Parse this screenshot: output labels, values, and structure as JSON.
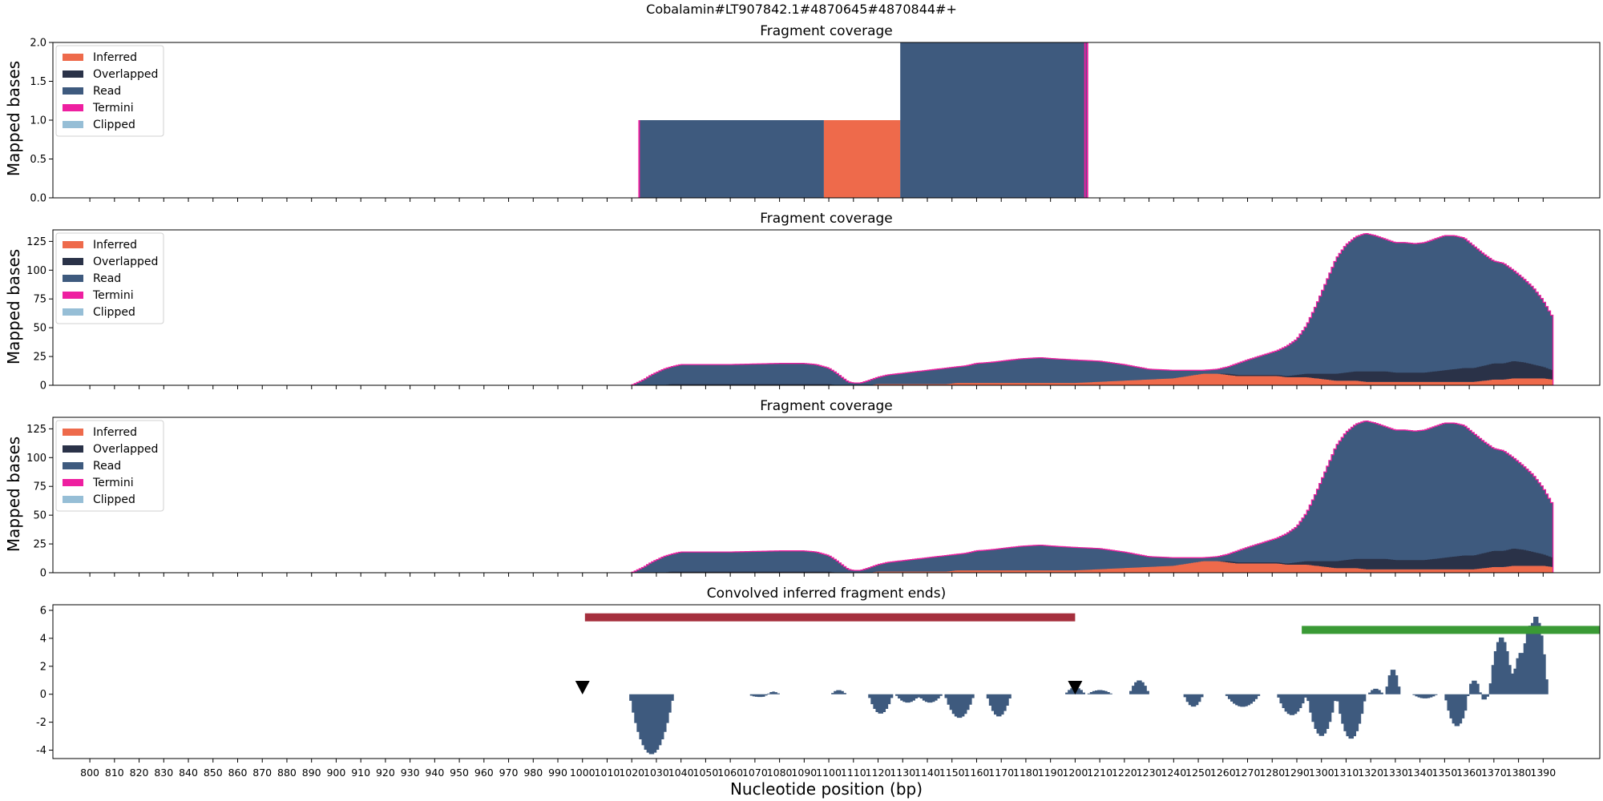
{
  "figure": {
    "suptitle": "Cobalamin#LT907842.1#4870645#4870844#+",
    "xlabel": "Nucleotide position (bp)",
    "ylabel": "Mapped bases",
    "x_range": [
      785,
      1413
    ],
    "x_ticks": [
      800,
      810,
      820,
      830,
      840,
      850,
      860,
      870,
      880,
      890,
      900,
      910,
      920,
      930,
      940,
      950,
      960,
      970,
      980,
      990,
      1000,
      1010,
      1020,
      1030,
      1040,
      1050,
      1060,
      1070,
      1080,
      1090,
      1100,
      1110,
      1120,
      1130,
      1140,
      1150,
      1160,
      1170,
      1180,
      1190,
      1200,
      1210,
      1220,
      1230,
      1240,
      1250,
      1260,
      1270,
      1280,
      1290,
      1300,
      1310,
      1320,
      1330,
      1340,
      1350,
      1360,
      1370,
      1380,
      1390
    ],
    "legend": [
      {
        "label": "Inferred",
        "color": "#EE6A4B"
      },
      {
        "label": "Overlapped",
        "color": "#2A3248"
      },
      {
        "label": "Read",
        "color": "#3E5A7E"
      },
      {
        "label": "Termini",
        "color": "#EE1FA0"
      },
      {
        "label": "Clipped",
        "color": "#96BED6"
      }
    ]
  },
  "chart_data": [
    {
      "type": "area",
      "title": "Fragment coverage",
      "ylabel": "Mapped bases",
      "ylim": [
        0,
        2
      ],
      "yticks": [
        "0.0",
        "0.5",
        "1.0",
        "1.5",
        "2.0"
      ],
      "legend_position": "upper-left",
      "segments": [
        {
          "x": [
            1023,
            1098
          ],
          "read": 1,
          "inferred": 0
        },
        {
          "x": [
            1098,
            1129
          ],
          "read": 0,
          "inferred": 1
        },
        {
          "x": [
            1129,
            1205
          ],
          "read": 2,
          "inferred": 0
        }
      ],
      "termini": [
        1023,
        1204,
        1205
      ]
    },
    {
      "type": "area",
      "title": "Fragment coverage",
      "ylabel": "Mapped bases",
      "ylim": [
        0,
        135
      ],
      "yticks": [
        "0",
        "25",
        "50",
        "75",
        "100",
        "125"
      ],
      "legend_position": "upper-left",
      "profile": {
        "x": [
          1020,
          1022,
          1025,
          1028,
          1031,
          1033,
          1036,
          1040,
          1060,
          1080,
          1090,
          1095,
          1100,
          1103,
          1106,
          1108,
          1110,
          1113,
          1116,
          1120,
          1124,
          1128,
          1132,
          1136,
          1140,
          1144,
          1148,
          1152,
          1156,
          1160,
          1166,
          1170,
          1178,
          1186,
          1192,
          1200,
          1210,
          1220,
          1230,
          1240,
          1246,
          1252,
          1258,
          1262,
          1266,
          1270,
          1276,
          1282,
          1286,
          1290,
          1294,
          1298,
          1302,
          1306,
          1310,
          1314,
          1318,
          1322,
          1326,
          1330,
          1334,
          1338,
          1342,
          1346,
          1350,
          1354,
          1358,
          1362,
          1366,
          1370,
          1374,
          1378,
          1382,
          1386,
          1390,
          1394
        ],
        "total": [
          0,
          2,
          5,
          9,
          12,
          14,
          16,
          18,
          18,
          19,
          19,
          18,
          15,
          11,
          6,
          3,
          2,
          2,
          4,
          7,
          9,
          10,
          11,
          12,
          13,
          14,
          15,
          16,
          17,
          19,
          20,
          21,
          23,
          24,
          23,
          22,
          21,
          18,
          14,
          13,
          13,
          13,
          14,
          16,
          19,
          22,
          26,
          30,
          34,
          40,
          52,
          70,
          90,
          110,
          122,
          129,
          132,
          130,
          127,
          124,
          124,
          123,
          124,
          127,
          130,
          130,
          128,
          121,
          114,
          108,
          106,
          100,
          93,
          85,
          74,
          59
        ],
        "inferred": [
          0,
          0,
          0,
          0,
          0,
          0,
          0,
          0,
          0,
          0,
          0,
          0,
          0,
          0,
          0,
          0,
          0,
          0,
          0,
          1,
          1,
          1,
          1,
          1,
          1,
          1,
          1,
          2,
          2,
          2,
          2,
          2,
          2,
          2,
          2,
          2,
          3,
          4,
          5,
          6,
          8,
          10,
          10,
          9,
          8,
          8,
          8,
          8,
          7,
          7,
          7,
          6,
          5,
          4,
          4,
          4,
          3,
          3,
          3,
          3,
          3,
          3,
          3,
          3,
          3,
          3,
          3,
          3,
          4,
          5,
          5,
          6,
          6,
          6,
          6,
          5
        ],
        "overlap": [
          0,
          0,
          0,
          0,
          0,
          0,
          1,
          1,
          1,
          1,
          1,
          1,
          1,
          0,
          0,
          0,
          0,
          0,
          0,
          0,
          0,
          0,
          0,
          0,
          0,
          0,
          0,
          0,
          0,
          0,
          0,
          0,
          0,
          0,
          0,
          0,
          0,
          0,
          0,
          0,
          0,
          0,
          0,
          1,
          1,
          1,
          1,
          1,
          1,
          2,
          3,
          4,
          5,
          6,
          7,
          8,
          9,
          9,
          9,
          8,
          8,
          8,
          8,
          9,
          10,
          11,
          12,
          12,
          13,
          14,
          14,
          15,
          14,
          12,
          10,
          8
        ]
      }
    },
    {
      "type": "area",
      "title": "Fragment coverage",
      "ylabel": "Mapped bases",
      "ylim": [
        0,
        135
      ],
      "yticks": [
        "0",
        "25",
        "50",
        "75",
        "100",
        "125"
      ],
      "legend_position": "upper-left",
      "profile": {
        "x": [
          1020,
          1022,
          1025,
          1028,
          1031,
          1033,
          1036,
          1040,
          1060,
          1080,
          1090,
          1095,
          1100,
          1103,
          1106,
          1108,
          1110,
          1113,
          1116,
          1120,
          1124,
          1128,
          1132,
          1136,
          1140,
          1144,
          1148,
          1152,
          1156,
          1160,
          1166,
          1170,
          1178,
          1186,
          1192,
          1200,
          1210,
          1220,
          1230,
          1240,
          1246,
          1252,
          1258,
          1262,
          1266,
          1270,
          1276,
          1282,
          1286,
          1290,
          1294,
          1298,
          1302,
          1306,
          1310,
          1314,
          1318,
          1322,
          1326,
          1330,
          1334,
          1338,
          1342,
          1346,
          1350,
          1354,
          1358,
          1362,
          1366,
          1370,
          1374,
          1378,
          1382,
          1386,
          1390,
          1394
        ],
        "total": [
          0,
          2,
          5,
          9,
          12,
          14,
          16,
          18,
          18,
          19,
          19,
          18,
          15,
          11,
          6,
          3,
          2,
          2,
          4,
          7,
          9,
          10,
          11,
          12,
          13,
          14,
          15,
          16,
          17,
          19,
          20,
          21,
          23,
          24,
          23,
          22,
          21,
          18,
          14,
          13,
          13,
          13,
          14,
          16,
          19,
          22,
          26,
          30,
          34,
          40,
          52,
          70,
          90,
          110,
          122,
          129,
          132,
          130,
          127,
          124,
          124,
          123,
          124,
          127,
          130,
          130,
          128,
          121,
          114,
          108,
          106,
          100,
          93,
          85,
          74,
          59
        ],
        "inferred": [
          0,
          0,
          0,
          0,
          0,
          0,
          0,
          0,
          0,
          0,
          0,
          0,
          0,
          0,
          0,
          0,
          0,
          0,
          0,
          1,
          1,
          1,
          1,
          1,
          1,
          1,
          1,
          2,
          2,
          2,
          2,
          2,
          2,
          2,
          2,
          2,
          3,
          4,
          5,
          6,
          8,
          10,
          10,
          9,
          8,
          8,
          8,
          8,
          7,
          7,
          7,
          6,
          5,
          4,
          4,
          4,
          3,
          3,
          3,
          3,
          3,
          3,
          3,
          3,
          3,
          3,
          3,
          3,
          4,
          5,
          5,
          6,
          6,
          6,
          6,
          5
        ],
        "overlap": [
          0,
          0,
          0,
          0,
          0,
          0,
          1,
          1,
          1,
          1,
          1,
          1,
          1,
          0,
          0,
          0,
          0,
          0,
          0,
          0,
          0,
          0,
          0,
          0,
          0,
          0,
          0,
          0,
          0,
          0,
          0,
          0,
          0,
          0,
          0,
          0,
          0,
          0,
          0,
          0,
          0,
          0,
          0,
          1,
          1,
          1,
          1,
          1,
          1,
          2,
          3,
          4,
          5,
          6,
          7,
          8,
          9,
          9,
          9,
          8,
          8,
          8,
          8,
          9,
          10,
          11,
          12,
          12,
          13,
          14,
          14,
          15,
          14,
          12,
          10,
          8
        ]
      }
    },
    {
      "type": "bar",
      "title": "Convolved inferred fragment ends)",
      "ylim": [
        -4.6,
        6.4
      ],
      "yticks": [
        "-4",
        "-2",
        "0",
        "2",
        "4",
        "6"
      ],
      "bumps": [
        {
          "center": 1028,
          "half_width": 9,
          "amp": -4.3
        },
        {
          "center": 1072,
          "half_width": 5,
          "amp": -0.2
        },
        {
          "center": 1077,
          "half_width": 3,
          "amp": 0.2
        },
        {
          "center": 1104,
          "half_width": 3,
          "amp": 0.3
        },
        {
          "center": 1121,
          "half_width": 5,
          "amp": -1.4
        },
        {
          "center": 1132,
          "half_width": 5,
          "amp": -0.6
        },
        {
          "center": 1141,
          "half_width": 5,
          "amp": -0.6
        },
        {
          "center": 1153,
          "half_width": 6,
          "amp": -1.7
        },
        {
          "center": 1169,
          "half_width": 5,
          "amp": -1.6
        },
        {
          "center": 1200,
          "half_width": 4,
          "amp": 0.5
        },
        {
          "center": 1210,
          "half_width": 5,
          "amp": 0.3
        },
        {
          "center": 1226,
          "half_width": 4,
          "amp": 1.0
        },
        {
          "center": 1248,
          "half_width": 4,
          "amp": -0.9
        },
        {
          "center": 1268,
          "half_width": 7,
          "amp": -0.9
        },
        {
          "center": 1288,
          "half_width": 6,
          "amp": -1.5
        },
        {
          "center": 1300,
          "half_width": 6,
          "amp": -3.0
        },
        {
          "center": 1312,
          "half_width": 6,
          "amp": -3.2
        },
        {
          "center": 1322,
          "half_width": 3,
          "amp": 0.4
        },
        {
          "center": 1329,
          "half_width": 3,
          "amp": 1.8
        },
        {
          "center": 1342,
          "half_width": 5,
          "amp": -0.3
        },
        {
          "center": 1355,
          "half_width": 5,
          "amp": -2.3
        },
        {
          "center": 1362,
          "half_width": 3,
          "amp": 1.0
        },
        {
          "center": 1366,
          "half_width": 2,
          "amp": -0.4
        },
        {
          "center": 1373,
          "half_width": 5,
          "amp": 4.1
        },
        {
          "center": 1381,
          "half_width": 4,
          "amp": 3.0
        },
        {
          "center": 1387,
          "half_width": 5,
          "amp": 5.6
        }
      ],
      "segments": [
        {
          "x": [
            1001,
            1200
          ],
          "y": 5.5,
          "color": "#A52F3D"
        },
        {
          "x": [
            1292,
            1415
          ],
          "y": 4.6,
          "color": "#3A9A35"
        }
      ],
      "markers": [
        {
          "x": 1000,
          "y": 0.5
        },
        {
          "x": 1200,
          "y": 0.5
        }
      ]
    }
  ]
}
